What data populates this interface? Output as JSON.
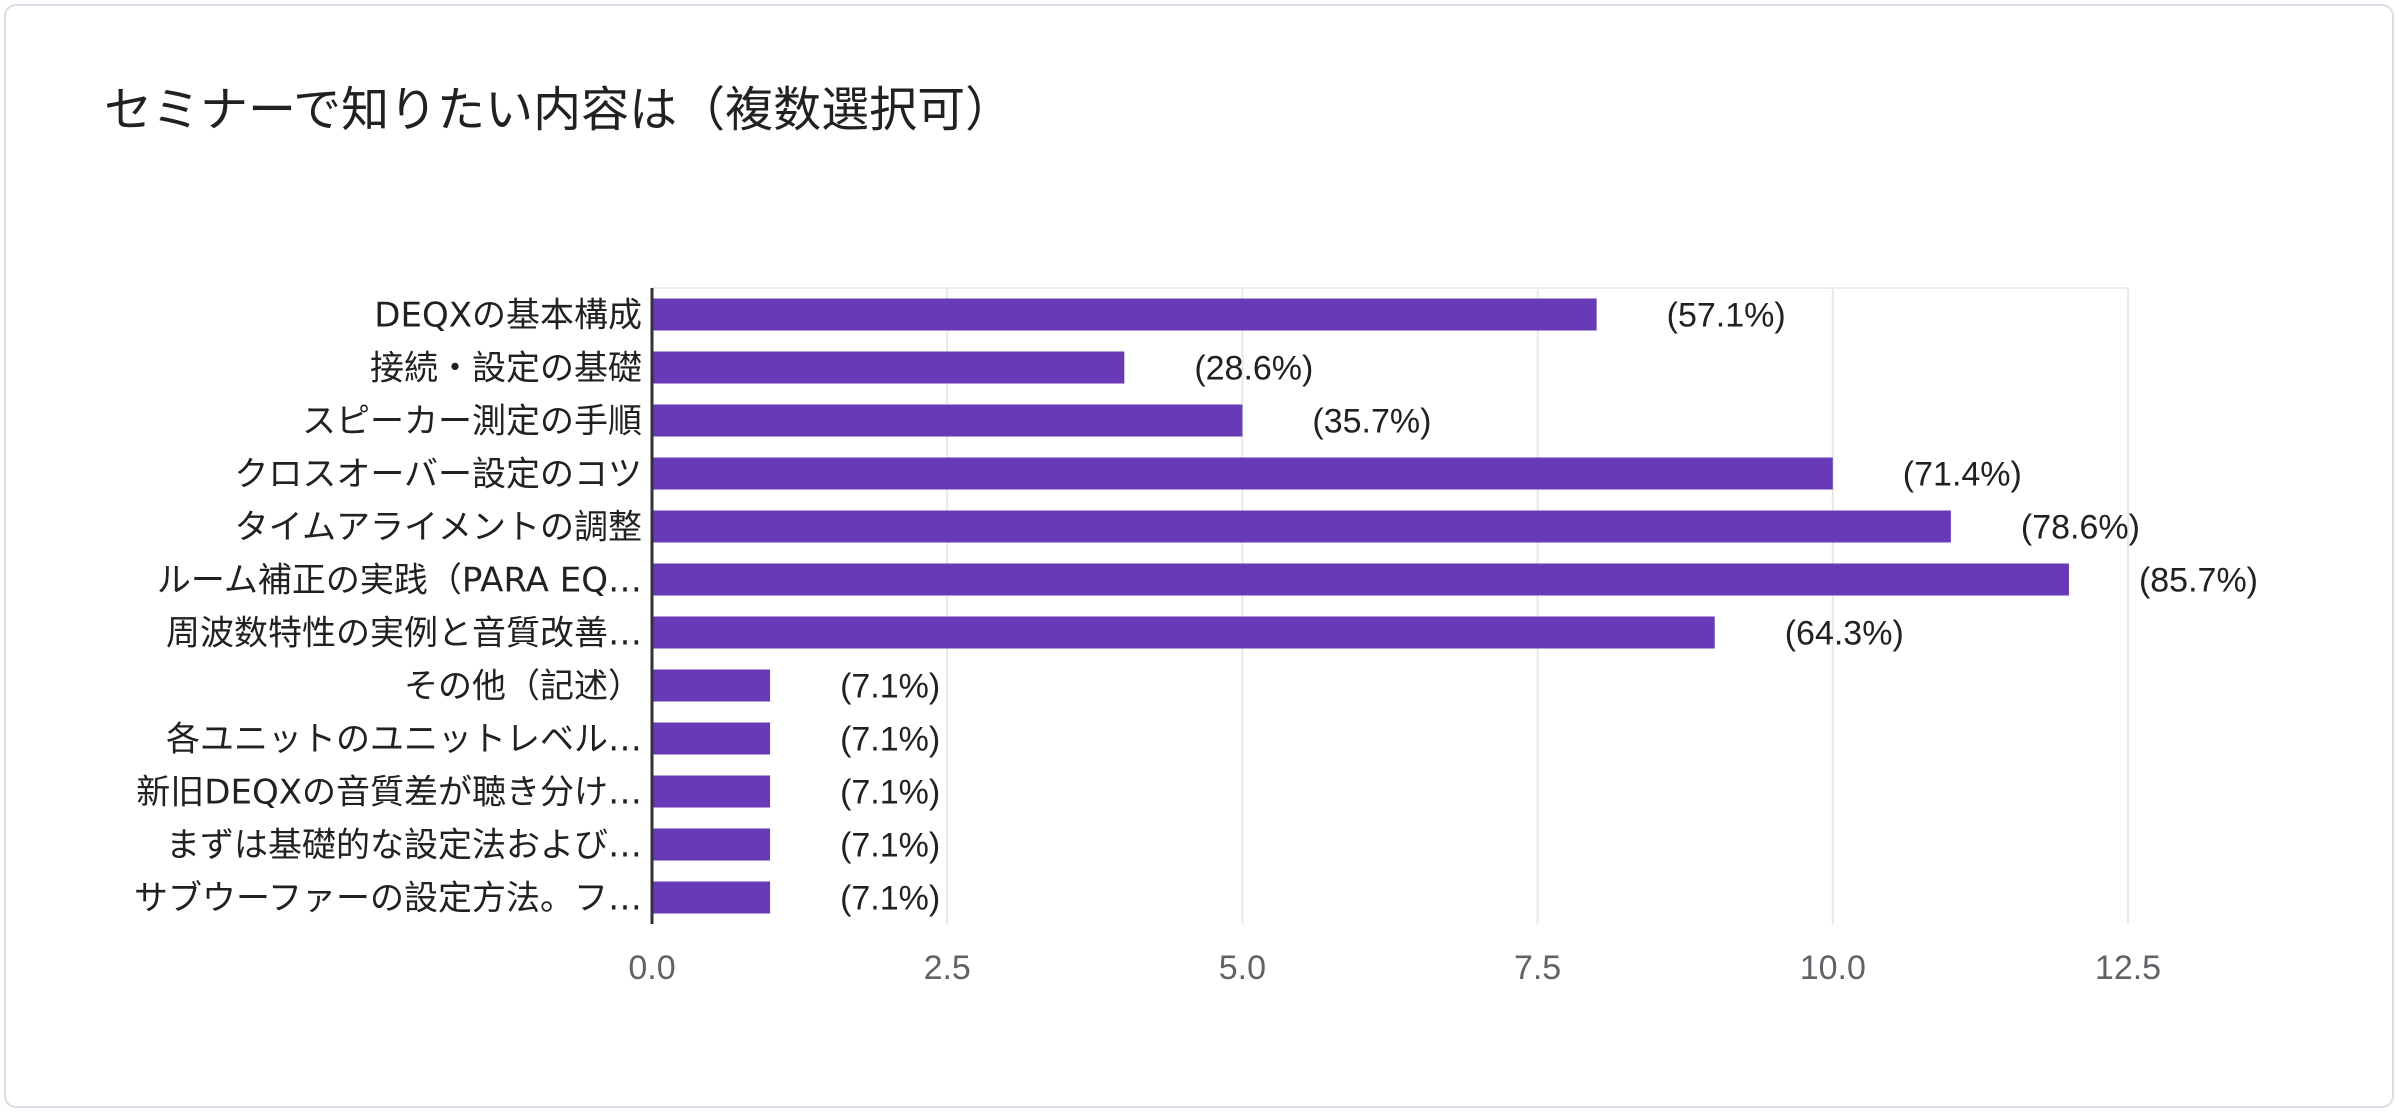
{
  "chart_data": {
    "type": "bar",
    "orientation": "horizontal",
    "title": "セミナーで知りたい内容は（複数選択可）",
    "categories": [
      "DEQXの基本構成",
      "接続・設定の基礎",
      "スピーカー測定の手順",
      "クロスオーバー設定のコツ",
      "タイムアライメントの調整",
      "ルーム補正の実践（PARA EQ…",
      "周波数特性の実例と音質改善…",
      "その他（記述）",
      "各ユニットのユニットレベル…",
      "新旧DEQXの音質差が聴き分け…",
      "まずは基礎的な設定法および…",
      "サブウーファーの設定方法。フ…"
    ],
    "values": [
      8,
      4,
      5,
      10,
      11,
      12,
      9,
      1,
      1,
      1,
      1,
      1
    ],
    "data_labels": [
      "(57.1%)",
      "(28.6%)",
      "(35.7%)",
      "(71.4%)",
      "(78.6%)",
      "(85.7%)",
      "(64.3%)",
      "(7.1%)",
      "(7.1%)",
      "(7.1%)",
      "(7.1%)",
      "(7.1%)"
    ],
    "x_ticks": [
      "0.0",
      "2.5",
      "5.0",
      "7.5",
      "10.0",
      "12.5"
    ],
    "xlim": [
      0,
      12.5
    ],
    "grid": true,
    "legend": false,
    "bar_color": "#673ab7",
    "grid_color": "#e8e8e8",
    "axis_color": "#333333"
  }
}
